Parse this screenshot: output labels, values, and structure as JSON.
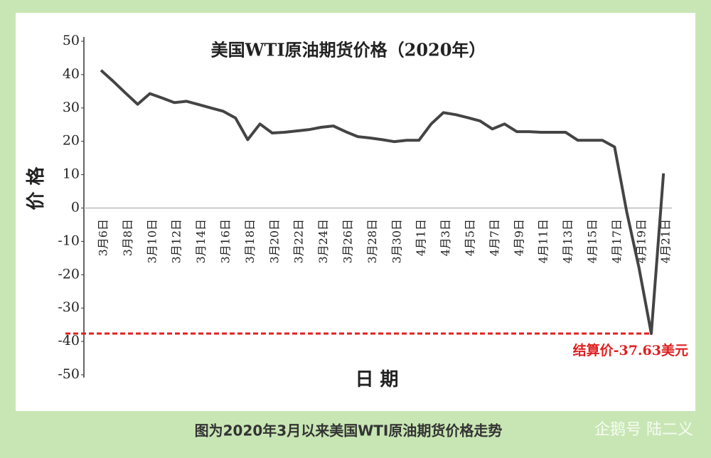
{
  "chart_data": {
    "type": "line",
    "title": "美国WTI原油期货价格（2020年）",
    "x_label": "日 期",
    "y_label": "价 格",
    "annotation": "结算价-37.63美元",
    "categories": [
      "3月6日",
      null,
      "3月8日",
      null,
      "3月10日",
      null,
      "3月12日",
      null,
      "3月14日",
      null,
      "3月16日",
      null,
      "3月18日",
      null,
      "3月20日",
      null,
      "3月22日",
      null,
      "3月24日",
      null,
      "3月26日",
      null,
      "3月28日",
      null,
      "3月30日",
      null,
      "4月1日",
      null,
      "4月3日",
      null,
      "4月5日",
      null,
      "4月7日",
      null,
      "4月9日",
      null,
      "4月11日",
      null,
      "4月13日",
      null,
      "4月15日",
      null,
      "4月17日",
      null,
      "4月19日",
      null,
      "4月21日"
    ],
    "series": [
      {
        "name": "WTI",
        "color": "#444444",
        "values": [
          41.3,
          38,
          34.5,
          31.1,
          34.3,
          33,
          31.6,
          32,
          31,
          30,
          29,
          27,
          20.5,
          25.2,
          22.5,
          22.7,
          23.1,
          23.5,
          24.2,
          24.6,
          22.9,
          21.4,
          21,
          20.5,
          19.9,
          20.3,
          20.3,
          25.2,
          28.6,
          28,
          27.1,
          26.1,
          23.7,
          25.2,
          22.9,
          22.9,
          22.7,
          22.7,
          22.7,
          20.3,
          20.3,
          20.3,
          18.3,
          -1.3,
          -18,
          -37.63,
          10.4
        ]
      }
    ],
    "ylim": [
      -50,
      50
    ],
    "yticks": [
      50,
      40,
      30,
      20,
      10,
      0,
      -10,
      -20,
      -30,
      -40,
      -50
    ],
    "annotation_color": "#e02020",
    "grid": false
  },
  "caption": "图为2020年3月以来美国WTI原油期货价格走势",
  "watermark": "企鹅号 陆二义"
}
